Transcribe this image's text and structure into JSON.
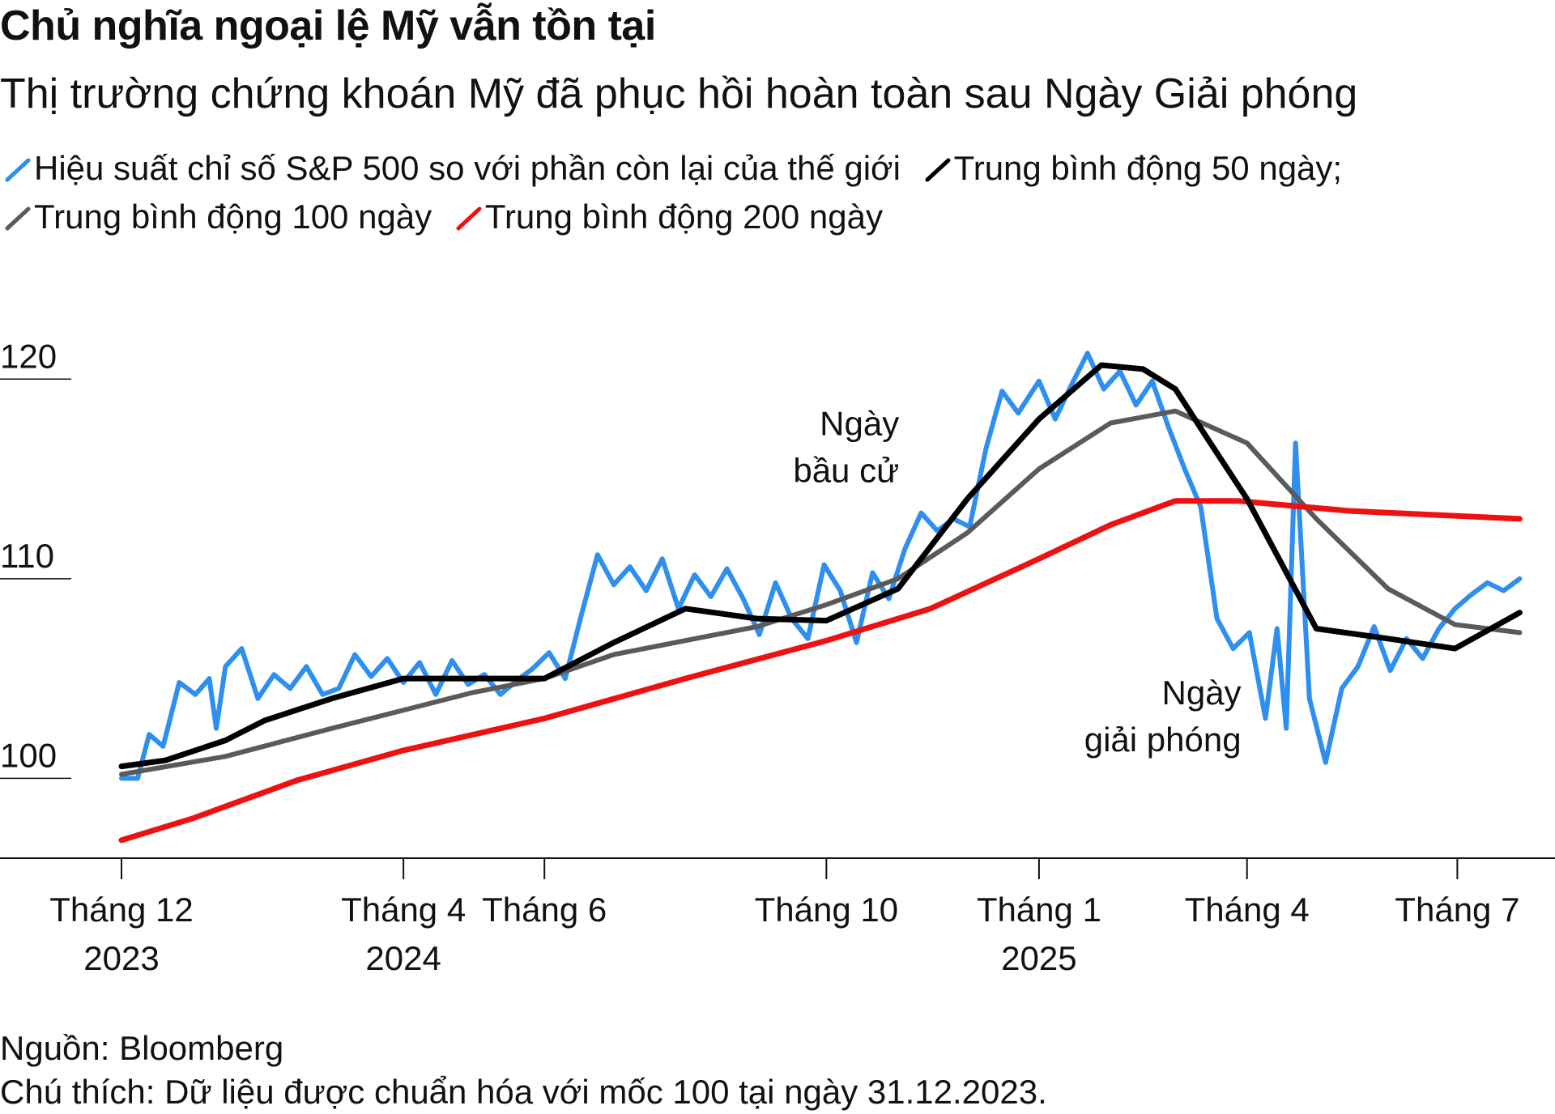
{
  "header": {
    "title": "Chủ nghĩa ngoại lệ Mỹ vẫn tồn tại",
    "subtitle": "Thị trường chứng khoán Mỹ đã phục hồi hoàn toàn sau Ngày Giải phóng"
  },
  "footer": {
    "source": "Nguồn: Bloomberg",
    "note": "Chú thích: Dữ liệu được chuẩn hóa với mốc 100 tại ngày 31.12.2023."
  },
  "colors": {
    "sp500": "#2e8ff0",
    "ma50": "#000000",
    "ma100": "#5a5a5a",
    "ma200": "#ee1111",
    "axis": "#111111"
  },
  "chart_data": {
    "type": "line",
    "ylim": [
      96,
      125
    ],
    "yticks": [
      100,
      110,
      120
    ],
    "xlim": [
      "2023-12-01",
      "2025-07-31"
    ],
    "xticks": [
      {
        "date": "2023-12-01",
        "label1": "Tháng 12",
        "label2": "2023"
      },
      {
        "date": "2024-04-01",
        "label1": "Tháng 4",
        "label2": "2024"
      },
      {
        "date": "2024-06-01",
        "label1": "Tháng 6",
        "label2": ""
      },
      {
        "date": "2024-10-01",
        "label1": "Tháng 10",
        "label2": ""
      },
      {
        "date": "2025-01-01",
        "label1": "Tháng 1",
        "label2": "2025"
      },
      {
        "date": "2025-04-01",
        "label1": "Tháng 4",
        "label2": ""
      },
      {
        "date": "2025-07-01",
        "label1": "Tháng 7",
        "label2": ""
      }
    ],
    "annotations": [
      {
        "lines": [
          "Ngày",
          "bầu cử"
        ],
        "date": "2024-11-05",
        "y": 117.2
      },
      {
        "lines": [
          "Ngày",
          "giải phóng"
        ],
        "date": "2025-04-02",
        "y": 103.7
      }
    ],
    "series": [
      {
        "name": "Hiệu suất chỉ số S&P 500 so với phần còn lại của thế giới",
        "color_key": "sp500",
        "points": [
          [
            "2023-12-01",
            100.0
          ],
          [
            "2023-12-08",
            100.0
          ],
          [
            "2023-12-13",
            102.2
          ],
          [
            "2023-12-19",
            101.6
          ],
          [
            "2023-12-26",
            104.8
          ],
          [
            "2024-01-02",
            104.2
          ],
          [
            "2024-01-08",
            105.0
          ],
          [
            "2024-01-11",
            102.5
          ],
          [
            "2024-01-15",
            105.6
          ],
          [
            "2024-01-22",
            106.5
          ],
          [
            "2024-01-29",
            104.0
          ],
          [
            "2024-02-05",
            105.2
          ],
          [
            "2024-02-12",
            104.5
          ],
          [
            "2024-02-19",
            105.6
          ],
          [
            "2024-02-26",
            104.2
          ],
          [
            "2024-03-04",
            104.5
          ],
          [
            "2024-03-11",
            106.2
          ],
          [
            "2024-03-18",
            105.1
          ],
          [
            "2024-03-25",
            106.0
          ],
          [
            "2024-04-01",
            104.8
          ],
          [
            "2024-04-08",
            105.8
          ],
          [
            "2024-04-15",
            104.2
          ],
          [
            "2024-04-22",
            105.9
          ],
          [
            "2024-04-29",
            104.7
          ],
          [
            "2024-05-06",
            105.2
          ],
          [
            "2024-05-13",
            104.2
          ],
          [
            "2024-05-20",
            104.9
          ],
          [
            "2024-05-27",
            105.5
          ],
          [
            "2024-06-03",
            106.3
          ],
          [
            "2024-06-10",
            105.0
          ],
          [
            "2024-06-17",
            108.2
          ],
          [
            "2024-06-24",
            111.2
          ],
          [
            "2024-07-01",
            109.7
          ],
          [
            "2024-07-08",
            110.6
          ],
          [
            "2024-07-15",
            109.4
          ],
          [
            "2024-07-22",
            111.0
          ],
          [
            "2024-07-29",
            108.5
          ],
          [
            "2024-08-05",
            110.2
          ],
          [
            "2024-08-12",
            109.1
          ],
          [
            "2024-08-19",
            110.5
          ],
          [
            "2024-08-26",
            109.0
          ],
          [
            "2024-09-02",
            107.2
          ],
          [
            "2024-09-09",
            109.8
          ],
          [
            "2024-09-16",
            108.0
          ],
          [
            "2024-09-23",
            107.0
          ],
          [
            "2024-09-30",
            110.7
          ],
          [
            "2024-10-07",
            109.4
          ],
          [
            "2024-10-14",
            106.8
          ],
          [
            "2024-10-21",
            110.3
          ],
          [
            "2024-10-28",
            109.0
          ],
          [
            "2024-11-04",
            111.5
          ],
          [
            "2024-11-11",
            113.3
          ],
          [
            "2024-11-18",
            112.4
          ],
          [
            "2024-11-25",
            113.0
          ],
          [
            "2024-12-02",
            112.6
          ],
          [
            "2024-12-09",
            116.5
          ],
          [
            "2024-12-16",
            119.4
          ],
          [
            "2024-12-23",
            118.3
          ],
          [
            "2025-01-01",
            119.9
          ],
          [
            "2025-01-08",
            118.0
          ],
          [
            "2025-01-15",
            119.7
          ],
          [
            "2025-01-22",
            121.3
          ],
          [
            "2025-01-29",
            119.5
          ],
          [
            "2025-02-05",
            120.4
          ],
          [
            "2025-02-12",
            118.7
          ],
          [
            "2025-02-19",
            119.9
          ],
          [
            "2025-02-26",
            117.6
          ],
          [
            "2025-03-05",
            115.5
          ],
          [
            "2025-03-12",
            113.6
          ],
          [
            "2025-03-19",
            108.0
          ],
          [
            "2025-03-26",
            106.5
          ],
          [
            "2025-04-02",
            107.3
          ],
          [
            "2025-04-09",
            103.0
          ],
          [
            "2025-04-14",
            107.5
          ],
          [
            "2025-04-18",
            102.5
          ],
          [
            "2025-04-22",
            116.8
          ],
          [
            "2025-04-28",
            104.0
          ],
          [
            "2025-05-05",
            100.8
          ],
          [
            "2025-05-12",
            104.5
          ],
          [
            "2025-05-19",
            105.6
          ],
          [
            "2025-05-26",
            107.6
          ],
          [
            "2025-06-02",
            105.4
          ],
          [
            "2025-06-09",
            107.0
          ],
          [
            "2025-06-16",
            106.0
          ],
          [
            "2025-06-23",
            107.5
          ],
          [
            "2025-06-30",
            108.5
          ],
          [
            "2025-07-07",
            109.2
          ],
          [
            "2025-07-14",
            109.8
          ],
          [
            "2025-07-21",
            109.4
          ],
          [
            "2025-07-28",
            110.0
          ]
        ]
      },
      {
        "name": "Trung bình động 50 ngày;",
        "color_key": "ma50",
        "points": [
          [
            "2023-12-01",
            100.6
          ],
          [
            "2023-12-20",
            100.9
          ],
          [
            "2024-01-15",
            101.9
          ],
          [
            "2024-02-01",
            102.9
          ],
          [
            "2024-03-01",
            104.0
          ],
          [
            "2024-04-01",
            105.0
          ],
          [
            "2024-05-01",
            105.0
          ],
          [
            "2024-06-01",
            105.0
          ],
          [
            "2024-07-01",
            106.8
          ],
          [
            "2024-08-01",
            108.5
          ],
          [
            "2024-09-01",
            108.0
          ],
          [
            "2024-10-01",
            107.9
          ],
          [
            "2024-11-01",
            109.5
          ],
          [
            "2024-12-01",
            114.0
          ],
          [
            "2025-01-01",
            118.0
          ],
          [
            "2025-01-28",
            120.7
          ],
          [
            "2025-02-15",
            120.5
          ],
          [
            "2025-03-01",
            119.5
          ],
          [
            "2025-03-15",
            117.0
          ],
          [
            "2025-04-01",
            114.0
          ],
          [
            "2025-05-01",
            107.5
          ],
          [
            "2025-06-01",
            107.0
          ],
          [
            "2025-06-30",
            106.5
          ],
          [
            "2025-07-28",
            108.3
          ]
        ]
      },
      {
        "name": "Trung bình động 100 ngày",
        "color_key": "ma100",
        "points": [
          [
            "2023-12-01",
            100.2
          ],
          [
            "2024-01-15",
            101.1
          ],
          [
            "2024-03-01",
            102.5
          ],
          [
            "2024-05-01",
            104.3
          ],
          [
            "2024-06-01",
            105.0
          ],
          [
            "2024-07-01",
            106.2
          ],
          [
            "2024-09-01",
            107.6
          ],
          [
            "2024-10-01",
            108.7
          ],
          [
            "2024-11-01",
            110.0
          ],
          [
            "2024-12-01",
            112.3
          ],
          [
            "2025-01-01",
            115.5
          ],
          [
            "2025-02-01",
            117.8
          ],
          [
            "2025-03-01",
            118.4
          ],
          [
            "2025-04-01",
            116.8
          ],
          [
            "2025-05-01",
            113.0
          ],
          [
            "2025-06-01",
            109.5
          ],
          [
            "2025-06-30",
            107.7
          ],
          [
            "2025-07-28",
            107.3
          ]
        ]
      },
      {
        "name": "Trung bình động 200 ngày",
        "color_key": "ma200",
        "points": [
          [
            "2023-12-01",
            96.9
          ],
          [
            "2024-01-01",
            98.0
          ],
          [
            "2024-02-15",
            99.9
          ],
          [
            "2024-04-01",
            101.4
          ],
          [
            "2024-06-01",
            103.0
          ],
          [
            "2024-08-01",
            105.0
          ],
          [
            "2024-10-01",
            106.9
          ],
          [
            "2024-11-15",
            108.5
          ],
          [
            "2025-01-01",
            111.0
          ],
          [
            "2025-02-01",
            112.7
          ],
          [
            "2025-03-01",
            113.9
          ],
          [
            "2025-03-28",
            113.9
          ],
          [
            "2025-05-15",
            113.4
          ],
          [
            "2025-07-28",
            113.0
          ]
        ]
      }
    ]
  }
}
